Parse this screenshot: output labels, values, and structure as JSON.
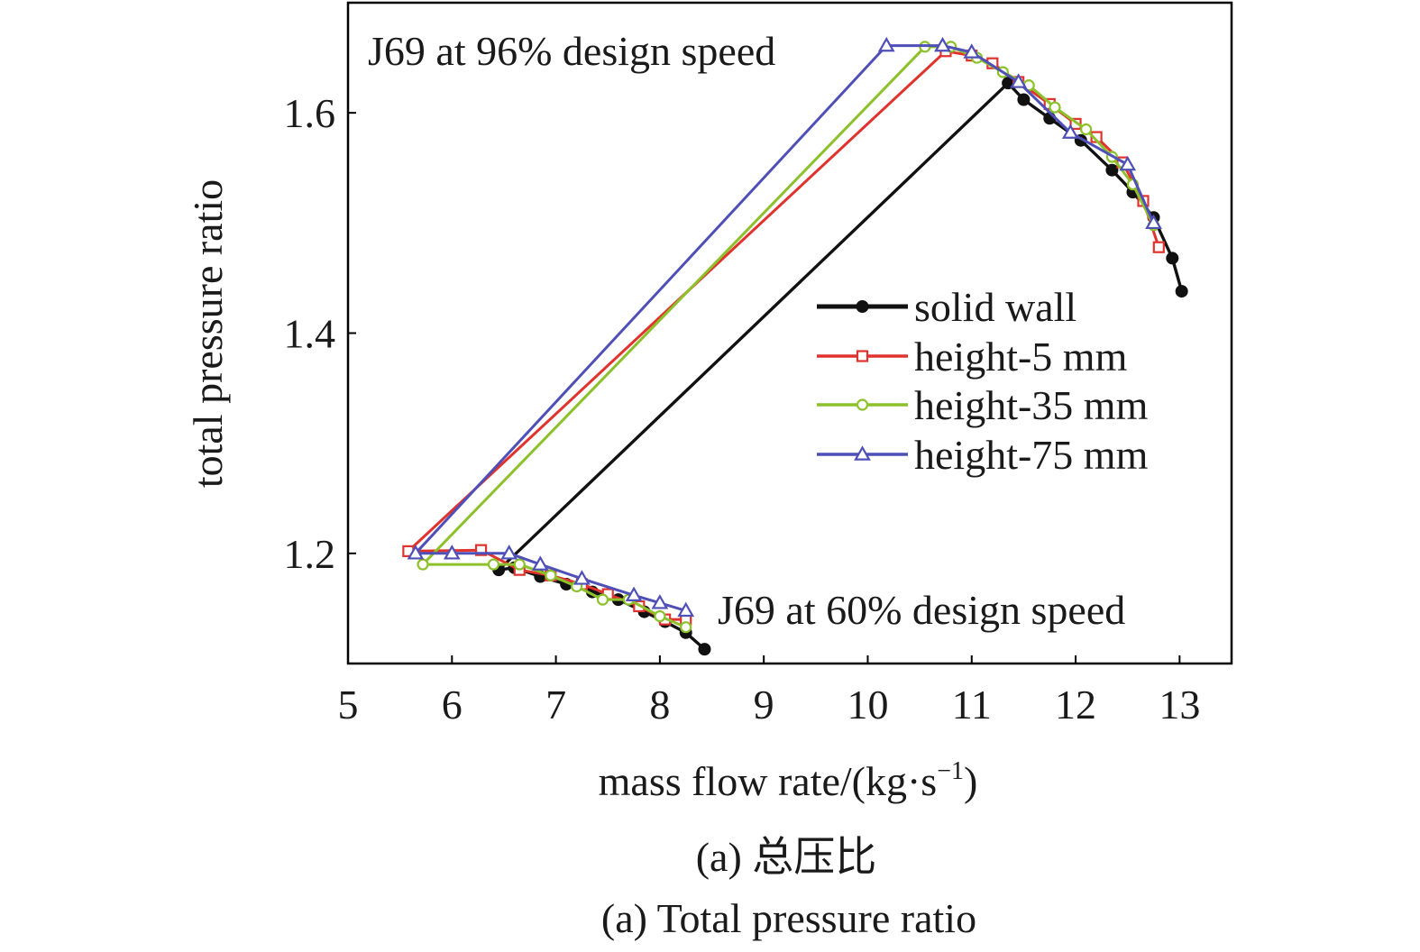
{
  "chart_data": {
    "type": "line",
    "xlabel": "mass flow rate/(kg·s",
    "xlabel_sup": "−1",
    "xlabel_tail": ")",
    "ylabel": "total pressure ratio",
    "xlim": [
      5,
      13.5
    ],
    "ylim": [
      1.1,
      1.7
    ],
    "x_ticks": [
      5,
      6,
      7,
      8,
      9,
      10,
      11,
      12,
      13
    ],
    "x_tick_labels": [
      "5",
      "6",
      "7",
      "8",
      "9",
      "10",
      "11",
      "12",
      "13"
    ],
    "y_ticks": [
      1.2,
      1.4,
      1.6
    ],
    "y_tick_labels": [
      "1.2",
      "1.4",
      "1.6"
    ],
    "grid": false,
    "legend_position": "right",
    "annotations": [
      {
        "text": "J69 at 96% design speed",
        "anchor": "top-left"
      },
      {
        "text": "J69 at 60% design speed",
        "anchor": "lower-right"
      }
    ],
    "series": [
      {
        "name": "solid wall",
        "color": "#111111",
        "marker": "filled-circle",
        "segments": [
          {
            "speed": "96%",
            "points": [
              [
                11.35,
                1.627
              ],
              [
                11.5,
                1.612
              ],
              [
                11.75,
                1.595
              ],
              [
                12.05,
                1.575
              ],
              [
                12.35,
                1.548
              ],
              [
                12.55,
                1.528
              ],
              [
                12.75,
                1.505
              ],
              [
                12.93,
                1.468
              ],
              [
                13.02,
                1.438
              ]
            ]
          },
          {
            "speed": "60%",
            "points": [
              [
                6.45,
                1.185
              ],
              [
                6.6,
                1.187
              ],
              [
                6.85,
                1.179
              ],
              [
                7.1,
                1.172
              ],
              [
                7.35,
                1.165
              ],
              [
                7.6,
                1.158
              ],
              [
                7.85,
                1.147
              ],
              [
                8.05,
                1.138
              ],
              [
                8.25,
                1.128
              ],
              [
                8.43,
                1.113
              ]
            ]
          },
          {
            "speed": "connector",
            "points": [
              [
                6.45,
                1.185
              ],
              [
                11.35,
                1.627
              ]
            ]
          }
        ]
      },
      {
        "name": "height-5 mm",
        "color": "#e0332e",
        "marker": "open-square",
        "segments": [
          {
            "speed": "96%",
            "points": [
              [
                10.75,
                1.656
              ],
              [
                11.0,
                1.652
              ],
              [
                11.2,
                1.645
              ],
              [
                11.45,
                1.628
              ],
              [
                11.75,
                1.608
              ],
              [
                12.0,
                1.59
              ],
              [
                12.2,
                1.578
              ],
              [
                12.45,
                1.555
              ],
              [
                12.65,
                1.52
              ],
              [
                12.8,
                1.478
              ]
            ]
          },
          {
            "speed": "60%",
            "points": [
              [
                5.58,
                1.202
              ],
              [
                6.28,
                1.203
              ],
              [
                6.65,
                1.185
              ],
              [
                6.95,
                1.18
              ],
              [
                7.25,
                1.172
              ],
              [
                7.5,
                1.163
              ],
              [
                7.8,
                1.152
              ],
              [
                8.05,
                1.14
              ],
              [
                8.25,
                1.14
              ]
            ]
          },
          {
            "speed": "connector",
            "points": [
              [
                5.58,
                1.202
              ],
              [
                10.75,
                1.656
              ]
            ]
          }
        ]
      },
      {
        "name": "height-35 mm",
        "color": "#8cc12b",
        "marker": "open-circle",
        "segments": [
          {
            "speed": "96%",
            "points": [
              [
                10.55,
                1.66
              ],
              [
                10.8,
                1.66
              ],
              [
                11.05,
                1.65
              ],
              [
                11.3,
                1.637
              ],
              [
                11.55,
                1.625
              ],
              [
                11.8,
                1.605
              ],
              [
                12.1,
                1.585
              ],
              [
                12.35,
                1.56
              ],
              [
                12.55,
                1.535
              ],
              [
                12.75,
                1.498
              ]
            ]
          },
          {
            "speed": "60%",
            "points": [
              [
                5.72,
                1.19
              ],
              [
                6.4,
                1.19
              ],
              [
                6.65,
                1.19
              ],
              [
                6.95,
                1.18
              ],
              [
                7.2,
                1.17
              ],
              [
                7.45,
                1.158
              ],
              [
                7.7,
                1.158
              ],
              [
                8.0,
                1.143
              ],
              [
                8.25,
                1.133
              ]
            ]
          },
          {
            "speed": "connector",
            "points": [
              [
                5.72,
                1.19
              ],
              [
                10.55,
                1.66
              ]
            ]
          }
        ]
      },
      {
        "name": "height-75 mm",
        "color": "#4f4fb8",
        "marker": "open-triangle",
        "segments": [
          {
            "speed": "96%",
            "points": [
              [
                10.18,
                1.661
              ],
              [
                10.72,
                1.661
              ],
              [
                11.0,
                1.655
              ],
              [
                11.45,
                1.628
              ],
              [
                11.95,
                1.582
              ],
              [
                12.5,
                1.553
              ],
              [
                12.75,
                1.5
              ]
            ]
          },
          {
            "speed": "60%",
            "points": [
              [
                5.65,
                1.2
              ],
              [
                6.0,
                1.2
              ],
              [
                6.55,
                1.2
              ],
              [
                6.85,
                1.19
              ],
              [
                7.25,
                1.177
              ],
              [
                7.75,
                1.162
              ],
              [
                8.0,
                1.155
              ],
              [
                8.25,
                1.148
              ]
            ]
          },
          {
            "speed": "connector",
            "points": [
              [
                5.65,
                1.2
              ],
              [
                10.18,
                1.661
              ]
            ]
          }
        ]
      }
    ]
  },
  "caption": {
    "line1": "(a) 总压比",
    "line2": "(a) Total pressure ratio"
  }
}
